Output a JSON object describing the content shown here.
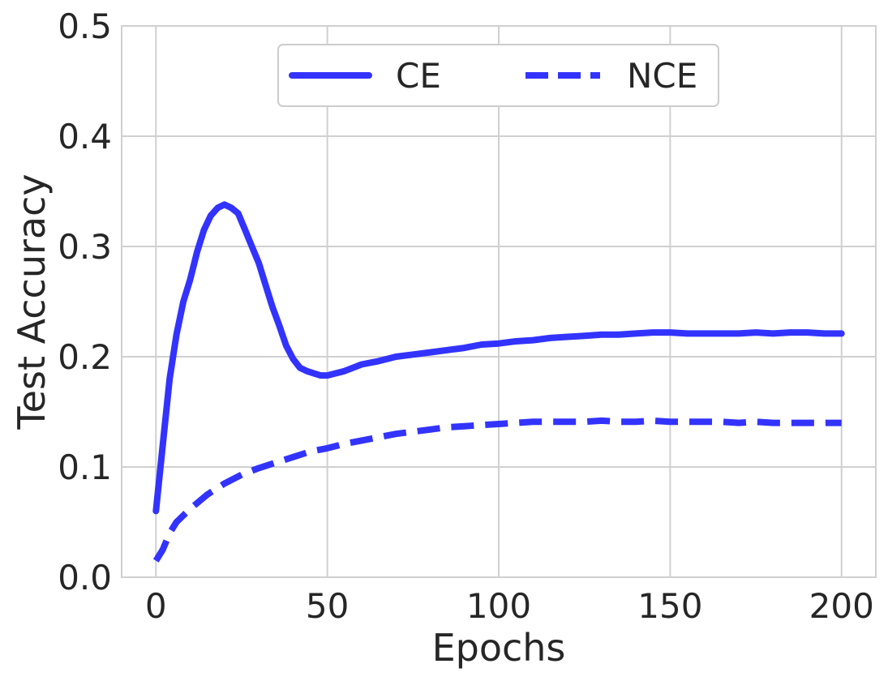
{
  "chart_data": {
    "type": "line",
    "title": "",
    "xlabel": "Epochs",
    "ylabel": "Test Accuracy",
    "xlim": [
      -10,
      210
    ],
    "ylim": [
      0.0,
      0.5
    ],
    "xticks": [
      0,
      50,
      100,
      150,
      200
    ],
    "xtick_labels": [
      "0",
      "50",
      "100",
      "150",
      "200"
    ],
    "yticks": [
      0.0,
      0.1,
      0.2,
      0.3,
      0.4,
      0.5
    ],
    "ytick_labels": [
      "0.0",
      "0.1",
      "0.2",
      "0.3",
      "0.4",
      "0.5"
    ],
    "grid": true,
    "legend_placement": "upper-center",
    "colors": {
      "series": "#3333ff",
      "grid": "#d0d0d0",
      "text": "#262626"
    },
    "series": [
      {
        "name": "CE",
        "line_style": "solid",
        "x": [
          0,
          2,
          4,
          6,
          8,
          10,
          12,
          14,
          16,
          18,
          20,
          22,
          24,
          26,
          28,
          30,
          32,
          34,
          36,
          38,
          40,
          42,
          44,
          46,
          48,
          50,
          55,
          60,
          65,
          70,
          75,
          80,
          85,
          90,
          95,
          100,
          105,
          110,
          115,
          120,
          125,
          130,
          135,
          140,
          145,
          150,
          155,
          160,
          165,
          170,
          175,
          180,
          185,
          190,
          195,
          200
        ],
        "y": [
          0.06,
          0.12,
          0.18,
          0.22,
          0.25,
          0.27,
          0.295,
          0.315,
          0.328,
          0.335,
          0.338,
          0.335,
          0.33,
          0.315,
          0.3,
          0.285,
          0.265,
          0.245,
          0.228,
          0.21,
          0.198,
          0.19,
          0.187,
          0.185,
          0.183,
          0.183,
          0.187,
          0.193,
          0.196,
          0.2,
          0.202,
          0.204,
          0.206,
          0.208,
          0.211,
          0.212,
          0.214,
          0.215,
          0.217,
          0.218,
          0.219,
          0.22,
          0.22,
          0.221,
          0.222,
          0.222,
          0.221,
          0.221,
          0.221,
          0.221,
          0.222,
          0.221,
          0.222,
          0.222,
          0.221,
          0.221
        ]
      },
      {
        "name": "NCE",
        "line_style": "dashed",
        "x": [
          0,
          2,
          4,
          6,
          8,
          10,
          15,
          20,
          25,
          30,
          35,
          40,
          45,
          50,
          55,
          60,
          65,
          70,
          75,
          80,
          85,
          90,
          95,
          100,
          105,
          110,
          115,
          120,
          125,
          130,
          135,
          140,
          145,
          150,
          155,
          160,
          165,
          170,
          175,
          180,
          185,
          190,
          195,
          200
        ],
        "y": [
          0.015,
          0.025,
          0.04,
          0.05,
          0.056,
          0.062,
          0.075,
          0.085,
          0.093,
          0.099,
          0.104,
          0.109,
          0.114,
          0.117,
          0.121,
          0.124,
          0.127,
          0.13,
          0.132,
          0.134,
          0.136,
          0.137,
          0.138,
          0.139,
          0.14,
          0.141,
          0.141,
          0.141,
          0.141,
          0.142,
          0.141,
          0.141,
          0.142,
          0.141,
          0.141,
          0.141,
          0.141,
          0.14,
          0.141,
          0.14,
          0.14,
          0.14,
          0.14,
          0.14
        ]
      }
    ]
  }
}
